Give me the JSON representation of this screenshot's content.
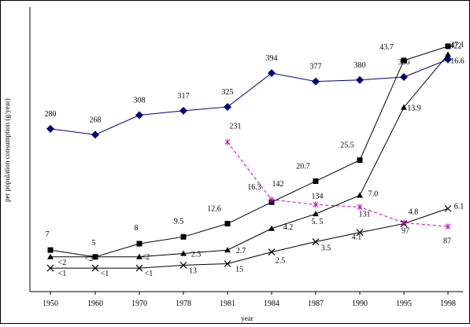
{
  "chart_data": {
    "type": "line",
    "ylabel": "per population consumption (g/year)",
    "xlabel": "year",
    "categories": [
      "1950",
      "1960",
      "1970",
      "1978",
      "1981",
      "1984",
      "1987",
      "1990",
      "1995",
      "1998"
    ],
    "ylim": [
      0,
      450
    ],
    "grid": false,
    "series": [
      {
        "color": "#000080",
        "marker": "diamond",
        "dash": "solid",
        "values": [
          280,
          268,
          308,
          317,
          325,
          394,
          377,
          380,
          386,
          422
        ],
        "labels": [
          "280",
          "268",
          "308",
          "317",
          "325",
          "394",
          "377",
          "380",
          "386",
          "422"
        ]
      },
      {
        "color": "#000000",
        "marker": "square",
        "dash": "solid",
        "values": [
          32,
          18,
          45,
          59,
          86,
          130,
          173,
          216,
          420,
          449
        ],
        "labels": [
          "7",
          "5",
          "8",
          "9.5",
          "12.6",
          "16.3",
          "20.7",
          "25.5",
          "43.7",
          "47.1"
        ]
      },
      {
        "color": "#000000",
        "marker": "triangle",
        "dash": "solid",
        "values": [
          18,
          18,
          18,
          25,
          32,
          76,
          106,
          144,
          324,
          432
        ],
        "labels": [
          "<2",
          "<2",
          "<2",
          "2.3",
          "2.7",
          "4.2",
          "5. 5",
          "7.0",
          "13.9",
          "16.6"
        ]
      },
      {
        "color": "#000000",
        "marker": "x",
        "dash": "solid",
        "values": [
          -5,
          -5,
          -5,
          1,
          4,
          28,
          49,
          68,
          86,
          117
        ],
        "labels": [
          "<1",
          "<1",
          "<1",
          "13",
          "15",
          "2.5",
          "3.5",
          "4.1",
          "4.8",
          "6.1"
        ]
      },
      {
        "color": "#cc00cc",
        "marker": "asterisk",
        "dash": "dashed",
        "values": [
          null,
          null,
          null,
          null,
          253,
          135,
          125,
          120,
          88,
          80
        ],
        "labels": [
          null,
          null,
          null,
          null,
          "231",
          "142",
          "134",
          "131",
          "97",
          "87"
        ]
      }
    ]
  }
}
